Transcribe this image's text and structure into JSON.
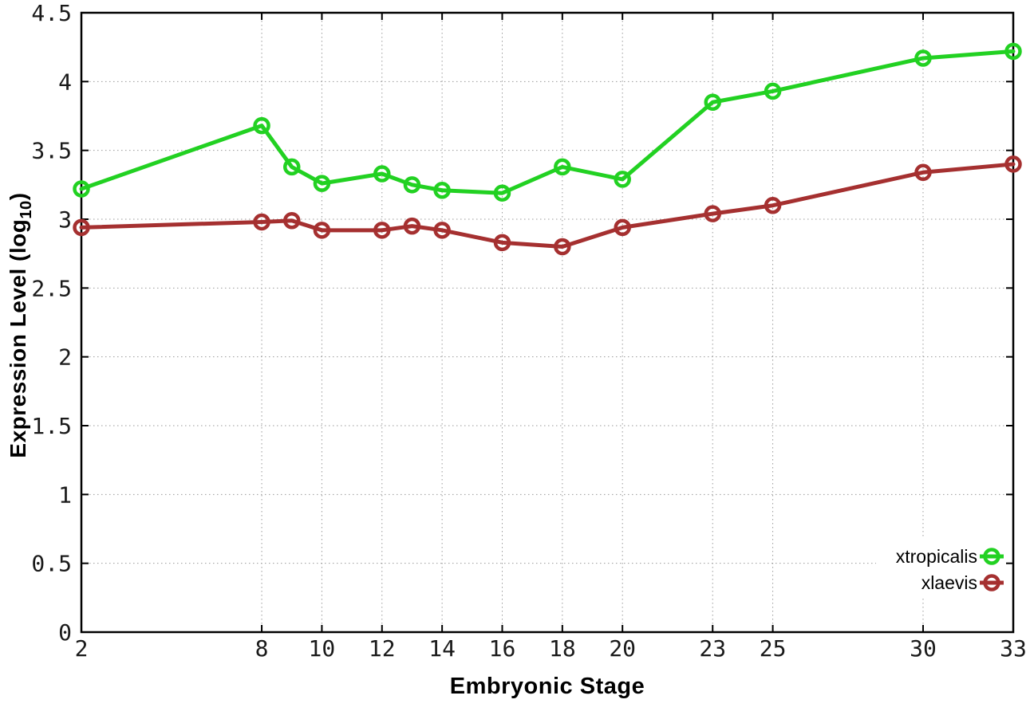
{
  "chart_data": {
    "type": "line",
    "title": "",
    "xlabel": "Embryonic Stage",
    "ylabel": "Expression Level (log10)",
    "ylabel_parts": {
      "pre": "Expression Level (log",
      "sub": "10",
      "post": ")"
    },
    "xlim": [
      2,
      33
    ],
    "ylim": [
      0,
      4.5
    ],
    "grid": true,
    "grid_style": "dotted",
    "legend_position": "bottom-right-inside",
    "x_ticks": [
      2,
      8,
      10,
      12,
      14,
      16,
      18,
      20,
      23,
      25,
      30,
      33
    ],
    "x_tick_labels": [
      "2",
      "8",
      "10",
      "12",
      "14",
      "16",
      "18",
      "20",
      "23",
      "25",
      "30",
      "33"
    ],
    "y_ticks": [
      0,
      0.5,
      1,
      1.5,
      2,
      2.5,
      3,
      3.5,
      4,
      4.5
    ],
    "y_tick_labels": [
      "0",
      "0.5",
      "1",
      "1.5",
      "2",
      "2.5",
      "3",
      "3.5",
      "4",
      "4.5"
    ],
    "x": [
      2,
      8,
      9,
      10,
      12,
      13,
      14,
      16,
      18,
      20,
      23,
      25,
      30,
      33
    ],
    "series": [
      {
        "name": "xtropicalis",
        "color": "#22d122",
        "marker": "open-circle",
        "values": [
          3.22,
          3.68,
          3.38,
          3.26,
          3.33,
          3.25,
          3.21,
          3.19,
          3.38,
          3.29,
          3.85,
          3.93,
          4.17,
          4.22
        ]
      },
      {
        "name": "xlaevis",
        "color": "#a53030",
        "marker": "open-circle",
        "values": [
          2.94,
          2.98,
          2.99,
          2.92,
          2.92,
          2.95,
          2.92,
          2.83,
          2.8,
          2.94,
          3.04,
          3.1,
          3.34,
          3.4
        ]
      }
    ],
    "colors": {
      "axis": "#000000",
      "grid": "#9a9a9a",
      "tick_label": "#1a1a1a",
      "background": "#ffffff"
    }
  }
}
